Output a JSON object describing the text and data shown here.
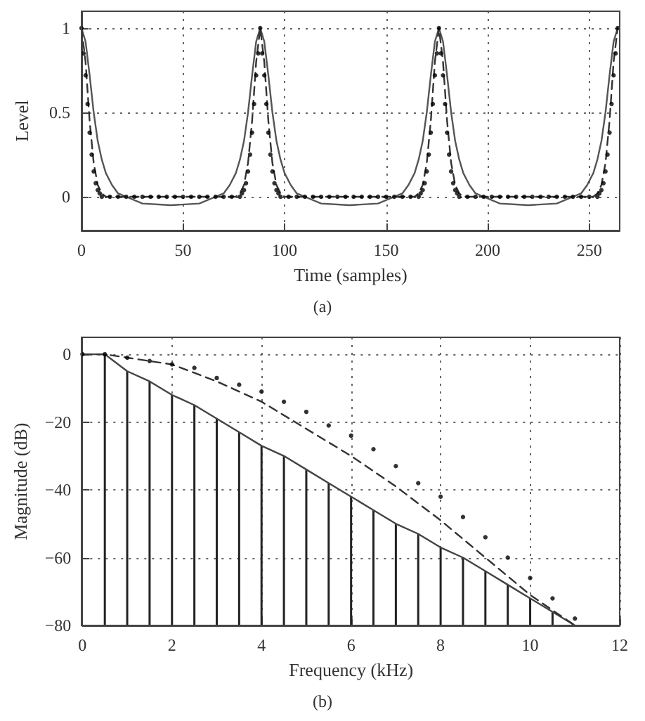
{
  "chart_data": [
    {
      "type": "line",
      "xlabel": "Time (samples)",
      "ylabel": "Level",
      "annotations": [
        "(a)"
      ],
      "xlim": [
        0,
        265
      ],
      "xticks": [
        0,
        50,
        100,
        150,
        200,
        250
      ],
      "ylim": [
        -0.2,
        1.1
      ],
      "yticks": [
        0,
        0.5,
        1
      ],
      "grid": true,
      "series": [
        {
          "line_style": "solid",
          "color": "#555555",
          "x": [
            0,
            2,
            4,
            6,
            8,
            10,
            12,
            15,
            18,
            22,
            30,
            44,
            58,
            66,
            70,
            73,
            76,
            78,
            80,
            82,
            84,
            86,
            88,
            90,
            92,
            94,
            96,
            98,
            100,
            103,
            106,
            110,
            118,
            132,
            146,
            154,
            158,
            161,
            164,
            166,
            168,
            170,
            172,
            174,
            176,
            178,
            180,
            182,
            184,
            186,
            188,
            191,
            194,
            198,
            206,
            220,
            234,
            242,
            246,
            249,
            252,
            254,
            256,
            258,
            260,
            262,
            264
          ],
          "values": [
            1,
            0.92,
            0.72,
            0.5,
            0.33,
            0.22,
            0.14,
            0.07,
            0.02,
            0,
            -0.04,
            -0.05,
            -0.04,
            0,
            0.02,
            0.07,
            0.14,
            0.22,
            0.33,
            0.5,
            0.72,
            0.92,
            1,
            0.92,
            0.72,
            0.5,
            0.33,
            0.22,
            0.14,
            0.07,
            0.02,
            0,
            -0.04,
            -0.05,
            -0.04,
            0,
            0.02,
            0.07,
            0.14,
            0.22,
            0.33,
            0.5,
            0.72,
            0.92,
            1,
            0.92,
            0.72,
            0.5,
            0.33,
            0.22,
            0.14,
            0.07,
            0.02,
            0,
            -0.04,
            -0.05,
            -0.04,
            0,
            0.02,
            0.07,
            0.14,
            0.22,
            0.33,
            0.5,
            0.72,
            0.92,
            1
          ]
        },
        {
          "line_style": "dashed",
          "color": "#333333",
          "x": [
            0,
            2,
            4,
            6,
            8,
            10,
            12,
            44,
            76,
            78,
            80,
            82,
            84,
            86,
            88,
            90,
            92,
            94,
            96,
            98,
            100,
            132,
            164,
            166,
            168,
            170,
            172,
            174,
            176,
            178,
            180,
            182,
            184,
            186,
            188,
            220,
            252,
            254,
            256,
            258,
            260,
            262,
            264
          ],
          "values": [
            1,
            0.8,
            0.45,
            0.2,
            0.07,
            0.02,
            0,
            0,
            0,
            0.02,
            0.07,
            0.2,
            0.45,
            0.8,
            1,
            0.8,
            0.45,
            0.2,
            0.07,
            0.02,
            0,
            0,
            0,
            0.02,
            0.07,
            0.2,
            0.45,
            0.8,
            1,
            0.8,
            0.45,
            0.2,
            0.07,
            0.02,
            0,
            0,
            0,
            0.02,
            0.07,
            0.2,
            0.45,
            0.8,
            1
          ]
        },
        {
          "type": "scatter",
          "marker": "circle",
          "color": "#000000",
          "x": [
            0,
            1,
            2,
            3,
            4,
            5,
            6,
            7,
            8,
            9,
            10,
            14,
            18,
            22,
            26,
            30,
            34,
            38,
            42,
            46,
            50,
            54,
            58,
            62,
            66,
            70,
            74,
            78,
            79,
            80,
            81,
            82,
            83,
            84,
            85,
            86,
            87,
            88,
            89,
            90,
            91,
            92,
            93,
            94,
            95,
            96,
            97,
            98,
            102,
            106,
            110,
            114,
            118,
            122,
            126,
            130,
            134,
            138,
            142,
            146,
            150,
            154,
            158,
            162,
            166,
            167,
            168,
            169,
            170,
            171,
            172,
            173,
            174,
            175,
            176,
            177,
            178,
            179,
            180,
            181,
            182,
            183,
            184,
            185,
            186,
            190,
            194,
            198,
            202,
            206,
            210,
            214,
            218,
            222,
            226,
            230,
            234,
            238,
            242,
            246,
            250,
            254,
            255,
            256,
            257,
            258,
            259,
            260,
            261,
            262,
            263,
            264
          ],
          "values": [
            1,
            0.85,
            0.72,
            0.55,
            0.38,
            0.25,
            0.15,
            0.08,
            0.04,
            0.02,
            0,
            0,
            0,
            0,
            0,
            0,
            0,
            0,
            0,
            0,
            0,
            0,
            0,
            0,
            0,
            0,
            0,
            0,
            0.02,
            0.04,
            0.08,
            0.15,
            0.25,
            0.38,
            0.55,
            0.72,
            0.85,
            1,
            0.85,
            0.72,
            0.55,
            0.38,
            0.25,
            0.15,
            0.08,
            0.04,
            0.02,
            0,
            0,
            0,
            0,
            0,
            0,
            0,
            0,
            0,
            0,
            0,
            0,
            0,
            0,
            0,
            0,
            0,
            0,
            0.02,
            0.04,
            0.08,
            0.15,
            0.25,
            0.38,
            0.55,
            0.72,
            0.85,
            1,
            0.85,
            0.72,
            0.55,
            0.38,
            0.25,
            0.15,
            0.08,
            0.04,
            0.02,
            0,
            0,
            0,
            0,
            0,
            0,
            0,
            0,
            0,
            0,
            0,
            0,
            0,
            0,
            0,
            0,
            0,
            0,
            0.02,
            0.04,
            0.08,
            0.15,
            0.25,
            0.38,
            0.55,
            0.72,
            0.85,
            1
          ]
        }
      ]
    },
    {
      "type": "line",
      "xlabel": "Frequency (kHz)",
      "ylabel": "Magnitude (dB)",
      "annotations": [
        "(b)"
      ],
      "xlim": [
        0,
        12
      ],
      "xticks": [
        0,
        2,
        4,
        6,
        8,
        10,
        12
      ],
      "ylim": [
        -80,
        5
      ],
      "yticks": [
        -80,
        -60,
        -40,
        -20,
        0
      ],
      "grid": true,
      "series": [
        {
          "type": "bar",
          "color": "#222222",
          "x": [
            0.5,
            1,
            1.5,
            2,
            2.5,
            3,
            3.5,
            4,
            4.5,
            5,
            5.5,
            6,
            6.5,
            7,
            7.5,
            8,
            8.5,
            9,
            9.5,
            10,
            10.5
          ],
          "base": [
            -80,
            -80,
            -80,
            -80,
            -80,
            -80,
            -80,
            -80,
            -80,
            -80,
            -80,
            -80,
            -80,
            -80,
            -80,
            -80,
            -80,
            -80,
            -80,
            -80,
            -80
          ],
          "values": [
            80,
            75,
            72,
            68,
            65,
            61,
            57,
            53,
            50,
            46,
            42,
            38,
            34,
            30,
            27,
            23,
            20,
            16,
            12,
            8,
            4
          ]
        },
        {
          "line_style": "solid",
          "color": "#444444",
          "x": [
            0,
            0.5,
            1,
            1.5,
            2,
            2.5,
            3,
            3.5,
            4,
            4.5,
            5,
            5.5,
            6,
            6.5,
            7,
            7.5,
            8,
            8.5,
            9,
            9.5,
            10,
            10.5,
            11
          ],
          "values": [
            0,
            0,
            -5,
            -8,
            -12,
            -15,
            -19,
            -23,
            -27,
            -30,
            -34,
            -38,
            -42,
            -46,
            -50,
            -53,
            -57,
            -60,
            -64,
            -68,
            -72,
            -76,
            -80
          ]
        },
        {
          "line_style": "dashed",
          "color": "#333333",
          "x": [
            0,
            0.5,
            1,
            2,
            3,
            4,
            5,
            6,
            7,
            8,
            9,
            10,
            11
          ],
          "values": [
            0,
            0,
            -1,
            -3,
            -8,
            -14,
            -22,
            -30,
            -39,
            -49,
            -60,
            -71,
            -80
          ]
        },
        {
          "type": "scatter",
          "marker": "circle",
          "color": "#000000",
          "x": [
            0,
            0.5,
            1,
            1.5,
            2,
            2.5,
            3,
            3.5,
            4,
            4.5,
            5,
            5.5,
            6,
            6.5,
            7,
            7.5,
            8,
            8.5,
            9,
            9.5,
            10,
            10.5,
            11
          ],
          "values": [
            0,
            0,
            -1,
            -2,
            -3,
            -4,
            -7,
            -9,
            -11,
            -14,
            -17,
            -21,
            -24,
            -28,
            -33,
            -38,
            -42,
            -48,
            -54,
            -60,
            -66,
            -72,
            -78
          ]
        }
      ]
    }
  ]
}
